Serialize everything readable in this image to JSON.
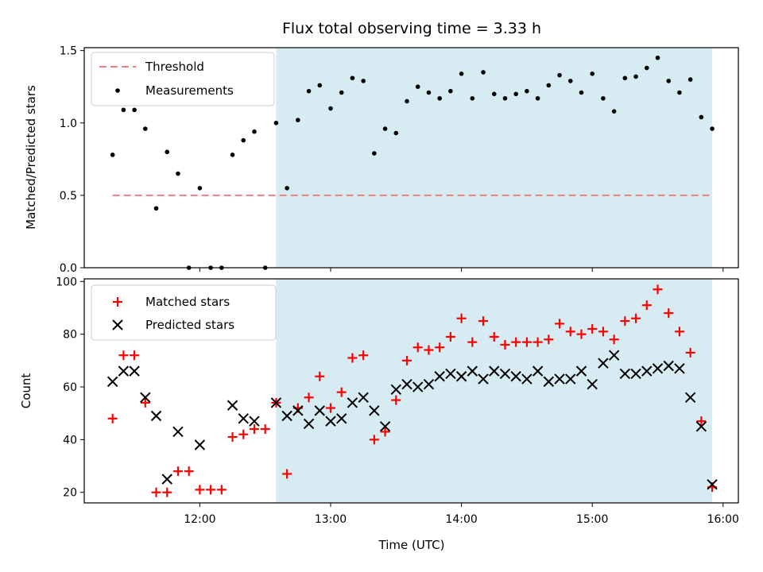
{
  "chart_data": [
    {
      "type": "scatter",
      "title": "Flux total observing time = 3.33 h",
      "ylabel": "Matched/Predicted stars",
      "ylim": [
        0,
        1.52
      ],
      "yticks": [
        "0.0",
        "0.5",
        "1.0",
        "1.5"
      ],
      "legend": {
        "placement": "top-left",
        "entries": [
          "Threshold",
          "Measurements"
        ]
      },
      "shaded_interval": [
        "12:35",
        "15:55"
      ],
      "threshold": {
        "name": "Threshold",
        "value": 0.5,
        "x_range": [
          "11:20",
          "15:55"
        ],
        "color": "#f08080"
      },
      "series": [
        {
          "name": "Measurements",
          "color": "#000000",
          "x": [
            "11:20",
            "11:25",
            "11:30",
            "11:35",
            "11:40",
            "11:45",
            "11:50",
            "11:55",
            "12:00",
            "12:05",
            "12:10",
            "12:15",
            "12:20",
            "12:25",
            "12:30",
            "12:35",
            "12:40",
            "12:45",
            "12:50",
            "12:55",
            "13:00",
            "13:05",
            "13:10",
            "13:15",
            "13:20",
            "13:25",
            "13:30",
            "13:35",
            "13:40",
            "13:45",
            "13:50",
            "13:55",
            "14:00",
            "14:05",
            "14:10",
            "14:15",
            "14:20",
            "14:25",
            "14:30",
            "14:35",
            "14:40",
            "14:45",
            "14:50",
            "14:55",
            "15:00",
            "15:05",
            "15:10",
            "15:15",
            "15:20",
            "15:25",
            "15:30",
            "15:35",
            "15:40",
            "15:45",
            "15:50",
            "15:55"
          ],
          "y": [
            0.78,
            1.09,
            1.09,
            0.96,
            0.41,
            0.8,
            0.65,
            0.0,
            0.55,
            0.0,
            0.0,
            0.78,
            0.88,
            0.94,
            0.0,
            1.0,
            0.55,
            1.02,
            1.22,
            1.26,
            1.1,
            1.21,
            1.31,
            1.29,
            0.79,
            0.96,
            0.93,
            1.15,
            1.25,
            1.21,
            1.17,
            1.22,
            1.34,
            1.17,
            1.35,
            1.2,
            1.17,
            1.2,
            1.22,
            1.17,
            1.26,
            1.33,
            1.29,
            1.21,
            1.34,
            1.17,
            1.08,
            1.31,
            1.32,
            1.38,
            1.45,
            1.29,
            1.21,
            1.3,
            1.04,
            0.96
          ]
        }
      ]
    },
    {
      "type": "scatter",
      "xlabel": "Time (UTC)",
      "ylabel": "Count",
      "ylim": [
        16,
        101
      ],
      "yticks": [
        "20",
        "40",
        "60",
        "80",
        "100"
      ],
      "xticks": [
        "12:00",
        "13:00",
        "14:00",
        "15:00",
        "16:00"
      ],
      "xlim": [
        "11:07",
        "16:07"
      ],
      "legend": {
        "placement": "top-left",
        "entries": [
          "Matched stars",
          "Predicted stars"
        ]
      },
      "shaded_interval": [
        "12:35",
        "15:55"
      ],
      "series": [
        {
          "name": "Matched stars",
          "marker": "+",
          "color": "#ff0000",
          "x": [
            "11:20",
            "11:25",
            "11:30",
            "11:35",
            "11:40",
            "11:45",
            "11:50",
            "11:55",
            "12:00",
            "12:05",
            "12:10",
            "12:15",
            "12:20",
            "12:25",
            "12:30",
            "12:35",
            "12:40",
            "12:45",
            "12:50",
            "12:55",
            "13:00",
            "13:05",
            "13:10",
            "13:15",
            "13:20",
            "13:25",
            "13:30",
            "13:35",
            "13:40",
            "13:45",
            "13:50",
            "13:55",
            "14:00",
            "14:05",
            "14:10",
            "14:15",
            "14:20",
            "14:25",
            "14:30",
            "14:35",
            "14:40",
            "14:45",
            "14:50",
            "14:55",
            "15:00",
            "15:05",
            "15:10",
            "15:15",
            "15:20",
            "15:25",
            "15:30",
            "15:35",
            "15:40",
            "15:45",
            "15:50",
            "15:55"
          ],
          "y": [
            48,
            72,
            72,
            54,
            20,
            20,
            28,
            28,
            21,
            21,
            21,
            41,
            42,
            44,
            44,
            54,
            27,
            52,
            56,
            64,
            52,
            58,
            71,
            72,
            40,
            43,
            55,
            70,
            75,
            74,
            75,
            79,
            86,
            77,
            85,
            79,
            76,
            77,
            77,
            77,
            78,
            84,
            81,
            80,
            82,
            81,
            78,
            85,
            86,
            91,
            97,
            88,
            81,
            73,
            47,
            22
          ]
        },
        {
          "name": "Predicted stars",
          "marker": "x",
          "color": "#000000",
          "x": [
            "11:20",
            "11:25",
            "11:30",
            "11:35",
            "11:40",
            "11:45",
            "11:50",
            "11:55",
            "12:00",
            "12:05",
            "12:10",
            "12:15",
            "12:20",
            "12:25",
            "12:30",
            "12:35",
            "12:40",
            "12:45",
            "12:50",
            "12:55",
            "13:00",
            "13:05",
            "13:10",
            "13:15",
            "13:20",
            "13:25",
            "13:30",
            "13:35",
            "13:40",
            "13:45",
            "13:50",
            "13:55",
            "14:00",
            "14:05",
            "14:10",
            "14:15",
            "14:20",
            "14:25",
            "14:30",
            "14:35",
            "14:40",
            "14:45",
            "14:50",
            "14:55",
            "15:00",
            "15:05",
            "15:10",
            "15:15",
            "15:20",
            "15:25",
            "15:30",
            "15:35",
            "15:40",
            "15:45",
            "15:50",
            "15:55"
          ],
          "y": [
            62,
            66,
            66,
            56,
            49,
            25,
            43,
            null,
            38,
            null,
            null,
            53,
            48,
            47,
            null,
            54,
            49,
            51,
            46,
            51,
            47,
            48,
            54,
            56,
            51,
            45,
            59,
            61,
            60,
            61,
            64,
            65,
            64,
            66,
            63,
            66,
            65,
            64,
            63,
            66,
            62,
            63,
            63,
            66,
            61,
            69,
            72,
            65,
            65,
            66,
            67,
            68,
            67,
            56,
            45,
            23
          ]
        }
      ]
    }
  ],
  "colors": {
    "shade": "#add8e6",
    "threshold": "#f08080",
    "matched": "#ff0000",
    "predicted": "#000000"
  }
}
